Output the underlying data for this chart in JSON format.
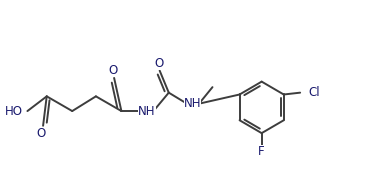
{
  "bg_color": "#ffffff",
  "line_color": "#3d3d3d",
  "text_color": "#1a1a6e",
  "line_width": 1.4,
  "font_size": 8.5,
  "fig_width": 3.68,
  "fig_height": 1.89,
  "dpi": 100,
  "xlim": [
    0,
    10
  ],
  "ylim": [
    0,
    5.1
  ]
}
